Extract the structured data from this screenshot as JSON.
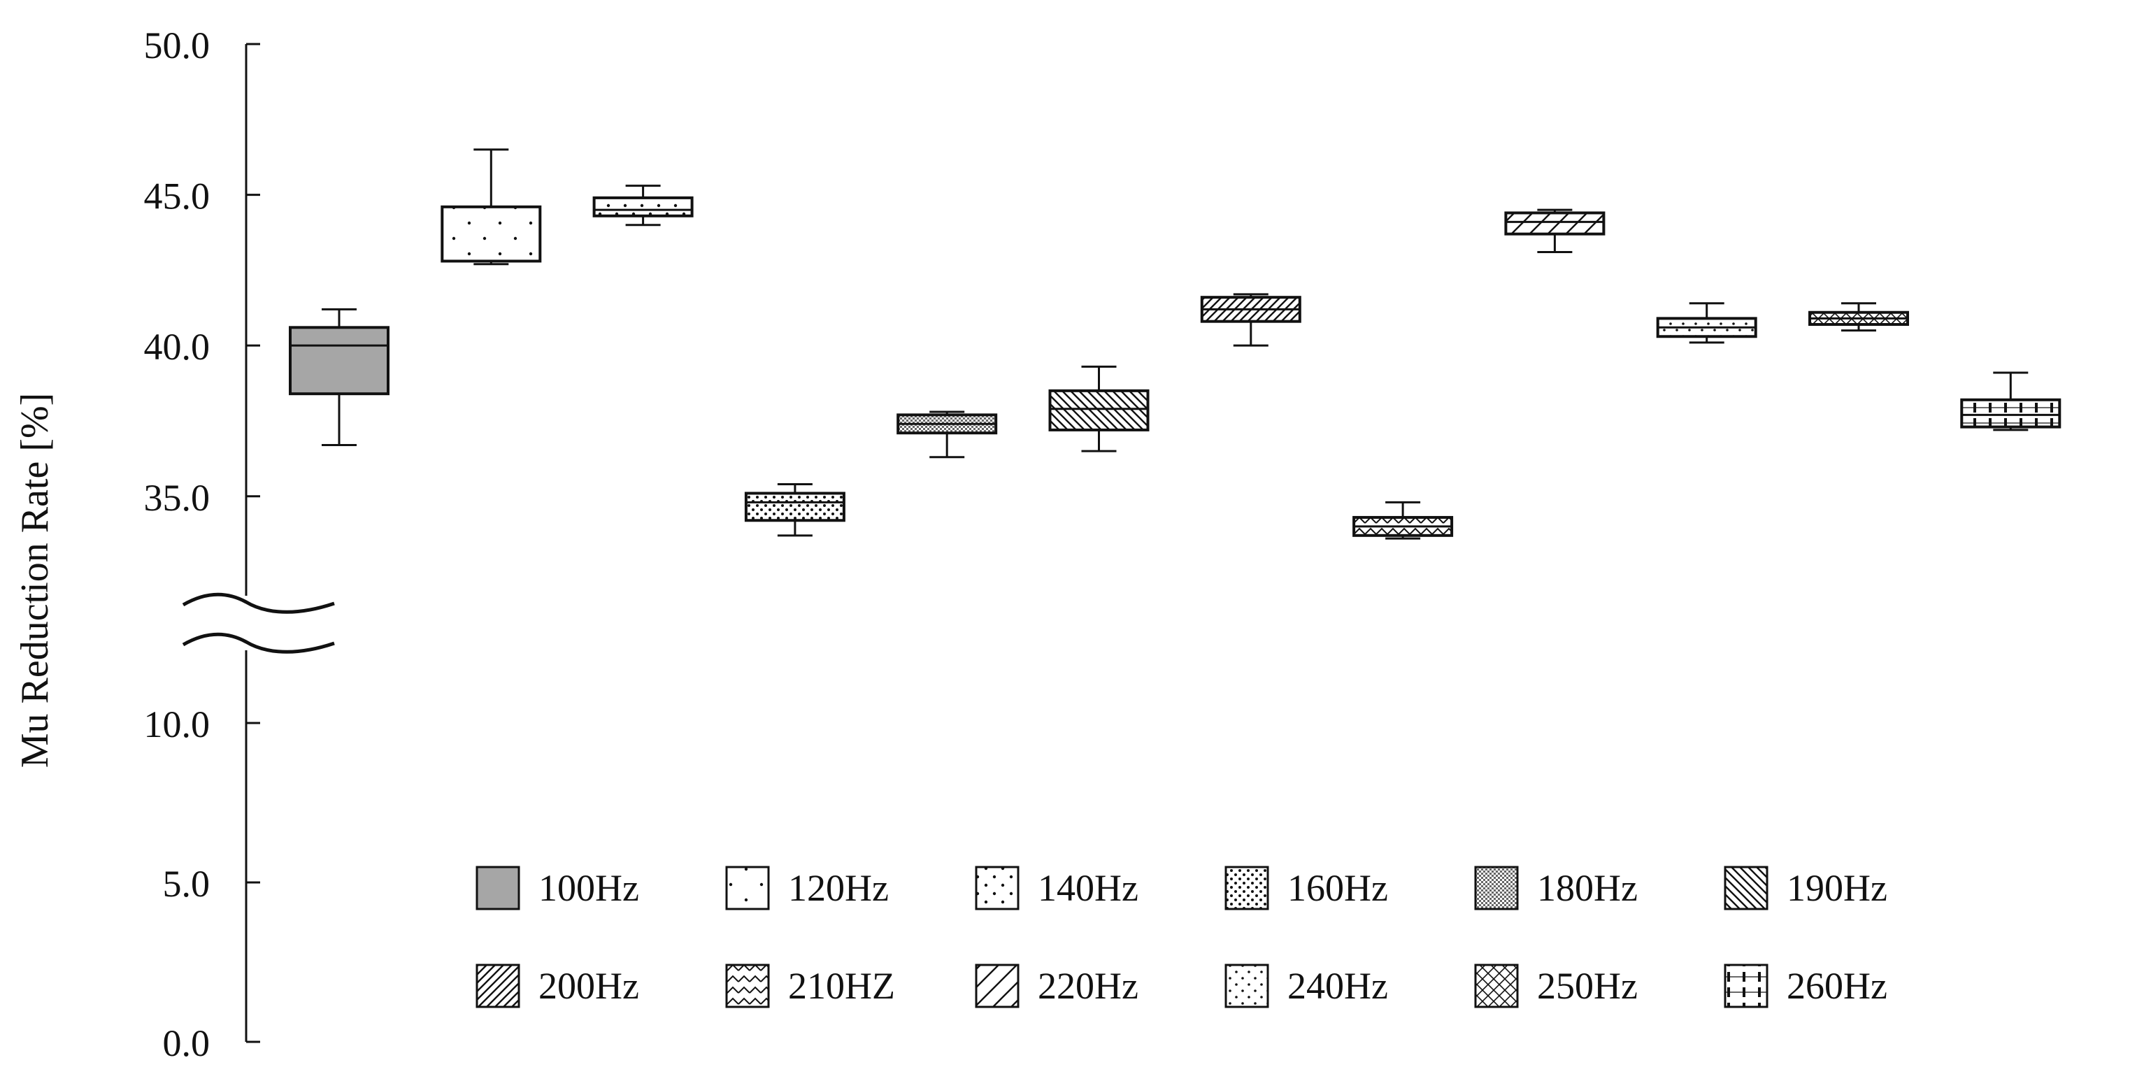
{
  "chart_data": {
    "type": "box",
    "ylabel": "Mu Reduction Rate [%]",
    "y_axis_break": [
      12.5,
      33.0
    ],
    "y_segments": [
      [
        0,
        12.5
      ],
      [
        33.0,
        50.0
      ]
    ],
    "yticks": [
      "0.0",
      "5.0",
      "10.0",
      "35.0",
      "40.0",
      "45.0",
      "50.0"
    ],
    "ytick_values": [
      0,
      5,
      10,
      35,
      40,
      45,
      50
    ],
    "legend_position": "bottom-right",
    "colors": {
      "fill": "#ffffff",
      "fill_100hz": "#a6a6a6",
      "stroke": "#111111"
    },
    "series": [
      {
        "name": "100Hz",
        "pattern": "solid-gray",
        "whisker_low": 36.7,
        "q1": 38.4,
        "median": 40.0,
        "q3": 40.6,
        "whisker_high": 41.2
      },
      {
        "name": "120Hz",
        "pattern": "sparse-dots",
        "whisker_low": 42.7,
        "q1": 42.8,
        "median": 42.8,
        "q3": 44.6,
        "whisker_high": 46.5
      },
      {
        "name": "140Hz",
        "pattern": "dots",
        "whisker_low": 44.0,
        "q1": 44.3,
        "median": 44.5,
        "q3": 44.9,
        "whisker_high": 45.3
      },
      {
        "name": "160Hz",
        "pattern": "dense-dots",
        "whisker_low": 33.7,
        "q1": 34.2,
        "median": 34.8,
        "q3": 35.1,
        "whisker_high": 35.4
      },
      {
        "name": "180Hz",
        "pattern": "grid",
        "whisker_low": 36.3,
        "q1": 37.1,
        "median": 37.4,
        "q3": 37.7,
        "whisker_high": 37.8
      },
      {
        "name": "190Hz",
        "pattern": "diag-down",
        "whisker_low": 36.5,
        "q1": 37.2,
        "median": 37.9,
        "q3": 38.5,
        "whisker_high": 39.3
      },
      {
        "name": "200Hz",
        "pattern": "diag-up",
        "whisker_low": 40.0,
        "q1": 40.8,
        "median": 41.2,
        "q3": 41.6,
        "whisker_high": 41.7
      },
      {
        "name": "210HZ",
        "pattern": "zigzag",
        "whisker_low": 33.6,
        "q1": 33.7,
        "median": 34.0,
        "q3": 34.3,
        "whisker_high": 34.8
      },
      {
        "name": "220Hz",
        "pattern": "wide-diag",
        "whisker_low": 43.1,
        "q1": 43.7,
        "median": 44.1,
        "q3": 44.4,
        "whisker_high": 44.5
      },
      {
        "name": "240Hz",
        "pattern": "light-dots",
        "whisker_low": 40.1,
        "q1": 40.3,
        "median": 40.6,
        "q3": 40.9,
        "whisker_high": 41.4
      },
      {
        "name": "250Hz",
        "pattern": "cross",
        "whisker_low": 40.5,
        "q1": 40.7,
        "median": 40.9,
        "q3": 41.1,
        "whisker_high": 41.4
      },
      {
        "name": "260Hz",
        "pattern": "vertical-bricks",
        "whisker_low": 37.2,
        "q1": 37.3,
        "median": 37.7,
        "q3": 38.2,
        "whisker_high": 39.1
      }
    ]
  }
}
